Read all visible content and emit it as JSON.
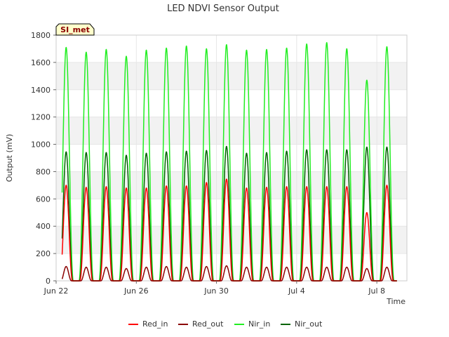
{
  "chart_data": {
    "type": "line",
    "title": "LED NDVI Sensor Output",
    "xlabel": "Time",
    "ylabel": "Output (mV)",
    "site_label": "SI_met",
    "xlim_days": [
      0,
      17.5
    ],
    "ylim": [
      0,
      1800
    ],
    "yticks": [
      0,
      200,
      400,
      600,
      800,
      1000,
      1200,
      1400,
      1600,
      1800
    ],
    "xticks": [
      {
        "label": "Jun 22",
        "day": 0
      },
      {
        "label": "Jun 26",
        "day": 4
      },
      {
        "label": "Jun 30",
        "day": 8
      },
      {
        "label": "Jul 4",
        "day": 12
      },
      {
        "label": "Jul 8",
        "day": 16
      }
    ],
    "grid": true,
    "legend_position": "bottom",
    "series": [
      {
        "name": "Red_in",
        "color": "#ff0000",
        "daily_peaks": [
          700,
          685,
          690,
          680,
          680,
          695,
          695,
          720,
          745,
          680,
          685,
          690,
          690,
          690,
          690,
          500,
          700
        ]
      },
      {
        "name": "Red_out",
        "color": "#8b0000",
        "daily_peaks": [
          105,
          100,
          100,
          90,
          100,
          105,
          100,
          105,
          110,
          100,
          100,
          100,
          100,
          100,
          100,
          90,
          100
        ]
      },
      {
        "name": "Nir_in",
        "color": "#22ee22",
        "daily_peaks": [
          1710,
          1675,
          1695,
          1645,
          1690,
          1705,
          1720,
          1700,
          1730,
          1690,
          1695,
          1705,
          1735,
          1745,
          1700,
          1470,
          1715
        ]
      },
      {
        "name": "Nir_out",
        "color": "#006400",
        "daily_peaks": [
          945,
          940,
          940,
          920,
          935,
          945,
          950,
          955,
          985,
          935,
          940,
          950,
          960,
          960,
          960,
          980,
          980
        ]
      }
    ]
  }
}
